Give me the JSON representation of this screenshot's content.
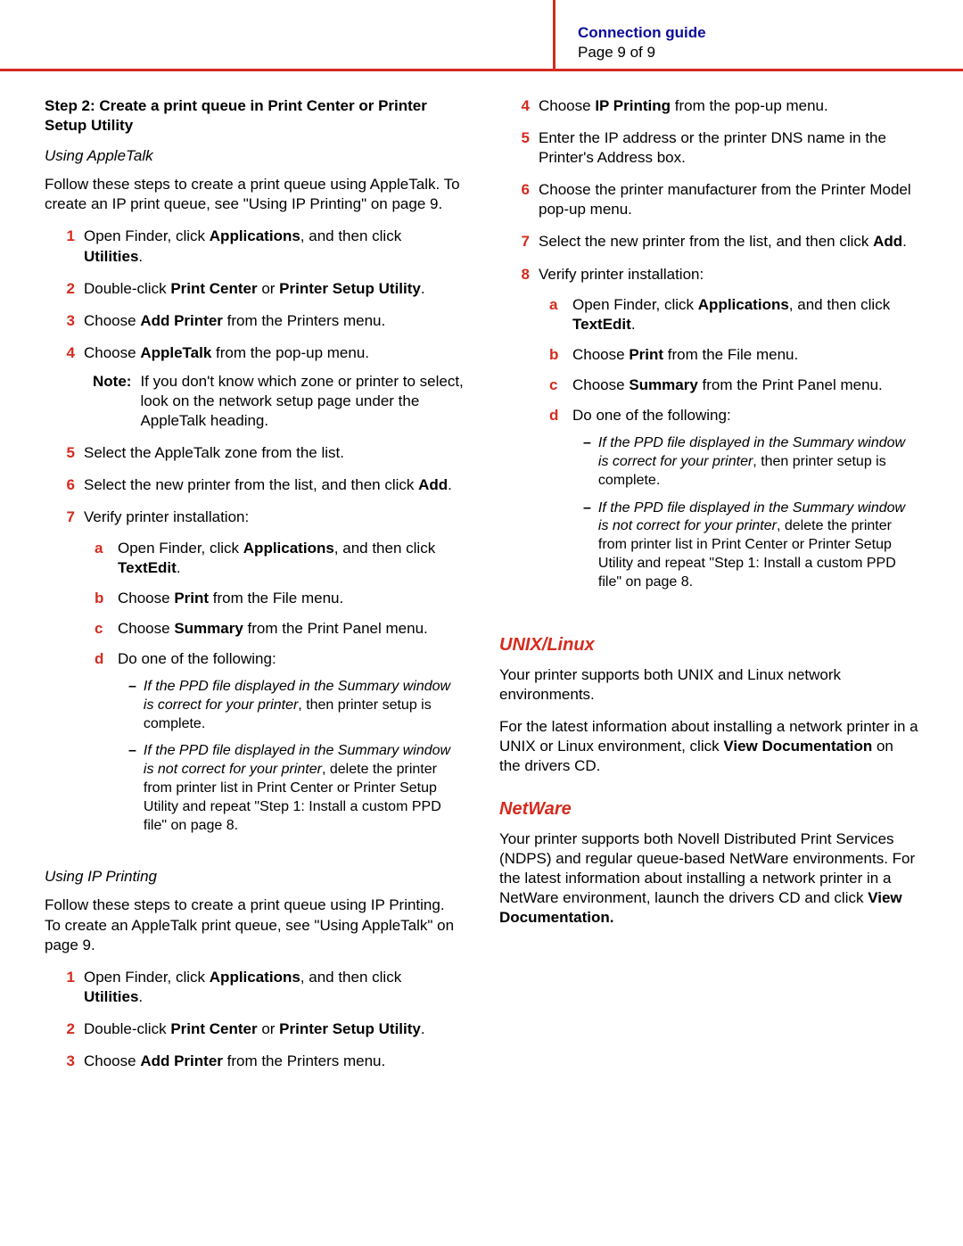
{
  "header": {
    "guide": "Connection guide",
    "page": "Page 9 of 9"
  },
  "left": {
    "stepTitle": "Step 2: Create a print queue in Print Center or Printer Setup Utility",
    "appletalk": {
      "heading": "Using AppleTalk",
      "intro": "Follow these steps to create a print queue using AppleTalk. To create an IP print queue, see \"Using IP Printing\" on page 9.",
      "s1_a": "Open Finder, click ",
      "s1_b": "Applications",
      "s1_c": ", and then click ",
      "s1_d": "Utilities",
      "s1_e": ".",
      "s2_a": "Double-click ",
      "s2_b": "Print Center",
      "s2_c": " or ",
      "s2_d": "Printer Setup Utility",
      "s2_e": ".",
      "s3_a": "Choose ",
      "s3_b": "Add Printer",
      "s3_c": " from the Printers menu.",
      "s4_a": "Choose ",
      "s4_b": "AppleTalk",
      "s4_c": " from the pop-up menu.",
      "noteLabel": "Note:",
      "noteText": "If you don't know which zone or printer to select, look on the network setup page under the AppleTalk heading.",
      "s5": "Select the AppleTalk zone from the list.",
      "s6_a": "Select the new printer from the list, and then click ",
      "s6_b": "Add",
      "s6_c": ".",
      "s7": "Verify printer installation:",
      "a_a": "Open Finder, click ",
      "a_b": "Applications",
      "a_c": ", and then click ",
      "a_d": "TextEdit",
      "a_e": ".",
      "b_a": "Choose ",
      "b_b": "Print",
      "b_c": " from the File menu.",
      "c_a": "Choose ",
      "c_b": "Summary",
      "c_c": " from the Print Panel menu.",
      "d": "Do one of the following:",
      "dash1_i": "If the PPD file displayed in the Summary window is correct for your printer",
      "dash1_r": ", then printer setup is complete.",
      "dash2_i": "If the PPD file displayed in the Summary window is not correct for your printer",
      "dash2_r": ", delete the printer from printer list in Print Center or Printer Setup Utility and repeat \"Step 1: Install a custom PPD file\" on page 8."
    },
    "ip": {
      "heading": "Using IP Printing",
      "intro": "Follow these steps to create a print queue using IP Printing. To create an AppleTalk print queue, see \"Using AppleTalk\" on page 9.",
      "s1_a": "Open Finder, click ",
      "s1_b": "Applications",
      "s1_c": ", and then click ",
      "s1_d": "Utilities",
      "s1_e": ".",
      "s2_a": "Double-click ",
      "s2_b": "Print Center",
      "s2_c": " or ",
      "s2_d": "Printer Setup Utility",
      "s2_e": ".",
      "s3_a": "Choose ",
      "s3_b": "Add Printer",
      "s3_c": " from the Printers menu."
    }
  },
  "right": {
    "s4_a": "Choose ",
    "s4_b": "IP Printing",
    "s4_c": " from the pop-up menu.",
    "s5": "Enter the IP address or the printer DNS name in the Printer's Address box.",
    "s6": "Choose the printer manufacturer from the Printer Model pop-up menu.",
    "s7_a": "Select the new printer from the list, and then click ",
    "s7_b": "Add",
    "s7_c": ".",
    "s8": "Verify printer installation:",
    "a_a": "Open Finder, click ",
    "a_b": "Applications",
    "a_c": ", and then click ",
    "a_d": "TextEdit",
    "a_e": ".",
    "b_a": "Choose ",
    "b_b": "Print",
    "b_c": " from the File menu.",
    "c_a": "Choose ",
    "c_b": "Summary",
    "c_c": " from the Print Panel menu.",
    "d": "Do one of the following:",
    "dash1_i": "If the PPD file displayed in the Summary window is correct for your printer",
    "dash1_r": ", then printer setup is complete.",
    "dash2_i": "If the PPD file displayed in the Summary window is not correct for your printer",
    "dash2_r": ", delete the printer from printer list in Print Center or Printer Setup Utility and repeat \"Step 1: Install a custom PPD file\" on page 8.",
    "unix": {
      "heading": "UNIX/Linux",
      "p1": "Your printer supports both UNIX and Linux network environments.",
      "p2_a": "For the latest information about installing a network printer in a UNIX or Linux environment, click ",
      "p2_b": "View Documentation",
      "p2_c": " on the drivers CD."
    },
    "netware": {
      "heading": "NetWare",
      "p1_a": "Your printer supports both Novell Distributed Print Services (NDPS) and regular queue-based NetWare environments. For the latest information about installing a network printer in a NetWare environment, launch the drivers CD and click ",
      "p1_b": "View Documentation."
    }
  }
}
